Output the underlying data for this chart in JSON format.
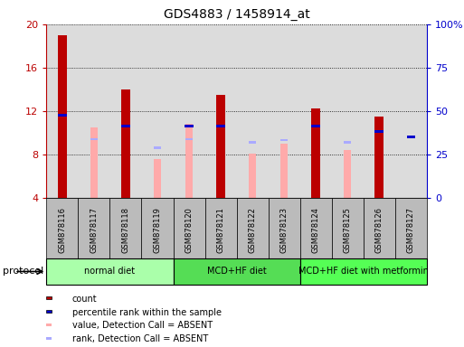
{
  "title": "GDS4883 / 1458914_at",
  "samples": [
    "GSM878116",
    "GSM878117",
    "GSM878118",
    "GSM878119",
    "GSM878120",
    "GSM878121",
    "GSM878122",
    "GSM878123",
    "GSM878124",
    "GSM878125",
    "GSM878126",
    "GSM878127"
  ],
  "count_values": [
    19.0,
    null,
    14.0,
    null,
    null,
    13.5,
    null,
    null,
    12.2,
    null,
    11.5,
    null
  ],
  "percentile_values": [
    11.5,
    null,
    10.5,
    null,
    10.5,
    10.5,
    null,
    null,
    10.5,
    null,
    10.0,
    9.5
  ],
  "absent_value_values": [
    null,
    10.5,
    null,
    7.6,
    10.8,
    null,
    8.1,
    9.0,
    null,
    8.4,
    null,
    null
  ],
  "absent_rank_values": [
    null,
    9.3,
    null,
    8.5,
    9.3,
    null,
    9.0,
    9.2,
    null,
    9.0,
    null,
    null
  ],
  "count_color": "#bb0000",
  "percentile_color": "#0000cc",
  "absent_value_color": "#ffaaaa",
  "absent_rank_color": "#aaaaff",
  "ylim_left": [
    4,
    20
  ],
  "ylim_right": [
    0,
    100
  ],
  "yticks_left": [
    4,
    8,
    12,
    16,
    20
  ],
  "yticks_right": [
    0,
    25,
    50,
    75,
    100
  ],
  "ytick_labels_right": [
    "0",
    "25",
    "50",
    "75",
    "100%"
  ],
  "groups": [
    {
      "label": "normal diet",
      "indices": [
        0,
        1,
        2,
        3
      ],
      "color": "#aaffaa"
    },
    {
      "label": "MCD+HF diet",
      "indices": [
        4,
        5,
        6,
        7
      ],
      "color": "#55dd55"
    },
    {
      "label": "MCD+HF diet with metformin",
      "indices": [
        8,
        9,
        10,
        11
      ],
      "color": "#55ff55"
    }
  ],
  "protocol_label": "protocol",
  "background_color": "#ffffff",
  "tick_area_color": "#bbbbbb",
  "legend_items": [
    {
      "color": "#bb0000",
      "label": "count"
    },
    {
      "color": "#0000cc",
      "label": "percentile rank within the sample"
    },
    {
      "color": "#ffaaaa",
      "label": "value, Detection Call = ABSENT"
    },
    {
      "color": "#aaaaff",
      "label": "rank, Detection Call = ABSENT"
    }
  ]
}
